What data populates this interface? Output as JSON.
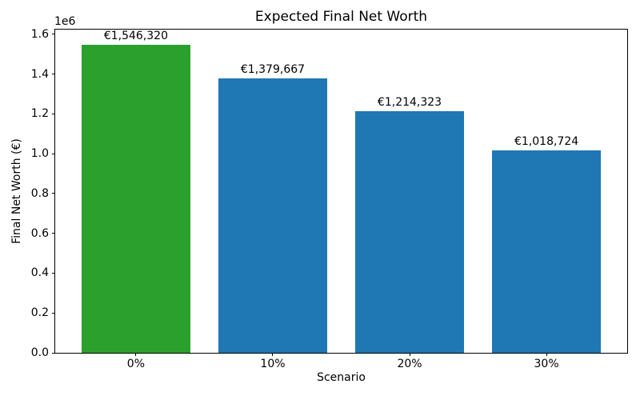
{
  "chart_data": {
    "type": "bar",
    "title": "Expected Final Net Worth",
    "xlabel": "Scenario",
    "ylabel": "Final Net Worth (€)",
    "categories": [
      "0%",
      "10%",
      "20%",
      "30%"
    ],
    "values": [
      1546320,
      1379667,
      1214323,
      1018724
    ],
    "value_labels": [
      "€1,546,320",
      "€1,379,667",
      "€1,214,323",
      "€1,018,724"
    ],
    "bar_colors": [
      "#2ca02c",
      "#1f77b4",
      "#1f77b4",
      "#1f77b4"
    ],
    "highlight_color": "#2ca02c",
    "default_color": "#1f77b4",
    "ylim": [
      0,
      1623636
    ],
    "xlim": [
      -0.59,
      3.59
    ],
    "bar_width_fraction": 0.8,
    "yticks": [
      0,
      200000,
      400000,
      600000,
      800000,
      1000000,
      1200000,
      1400000,
      1600000
    ],
    "ytick_labels": [
      "0.0",
      "0.2",
      "0.4",
      "0.6",
      "0.8",
      "1.0",
      "1.2",
      "1.4",
      "1.6"
    ],
    "y_offset_text": "1e6",
    "grid": false,
    "legend": null
  }
}
